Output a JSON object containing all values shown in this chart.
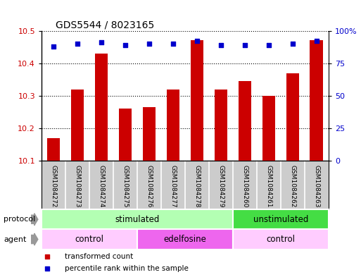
{
  "title": "GDS5544 / 8023165",
  "samples": [
    "GSM1084272",
    "GSM1084273",
    "GSM1084274",
    "GSM1084275",
    "GSM1084276",
    "GSM1084277",
    "GSM1084278",
    "GSM1084279",
    "GSM1084260",
    "GSM1084261",
    "GSM1084262",
    "GSM1084263"
  ],
  "bar_values": [
    10.17,
    10.32,
    10.43,
    10.26,
    10.265,
    10.32,
    10.47,
    10.32,
    10.345,
    10.3,
    10.37,
    10.47
  ],
  "percentile_values": [
    88,
    90,
    91,
    89,
    90,
    90,
    92,
    89,
    89,
    89,
    90,
    92
  ],
  "bar_color": "#cc0000",
  "dot_color": "#0000cc",
  "ylim_left": [
    10.1,
    10.5
  ],
  "ylim_right": [
    0,
    100
  ],
  "yticks_left": [
    10.1,
    10.2,
    10.3,
    10.4,
    10.5
  ],
  "yticks_right": [
    0,
    25,
    50,
    75,
    100
  ],
  "ytick_labels_right": [
    "0",
    "25",
    "50",
    "75",
    "100%"
  ],
  "protocol_groups": [
    {
      "label": "stimulated",
      "start": 0,
      "end": 8,
      "color": "#b3ffb3"
    },
    {
      "label": "unstimulated",
      "start": 8,
      "end": 12,
      "color": "#44dd44"
    }
  ],
  "agent_groups": [
    {
      "label": "control",
      "start": 0,
      "end": 4,
      "color": "#ffccff"
    },
    {
      "label": "edelfosine",
      "start": 4,
      "end": 8,
      "color": "#ee66ee"
    },
    {
      "label": "control",
      "start": 8,
      "end": 12,
      "color": "#ffccff"
    }
  ],
  "legend_items": [
    {
      "label": "transformed count",
      "color": "#cc0000"
    },
    {
      "label": "percentile rank within the sample",
      "color": "#0000cc"
    }
  ],
  "protocol_label": "protocol",
  "agent_label": "agent",
  "sample_bg_color": "#cccccc",
  "background_color": "#ffffff"
}
